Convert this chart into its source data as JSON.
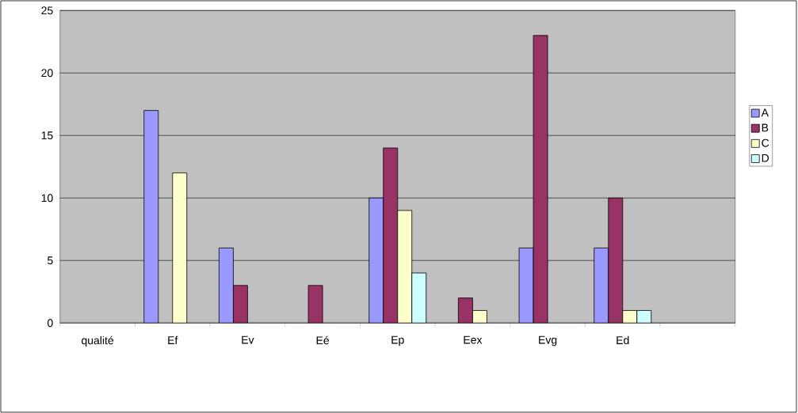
{
  "chart_data": {
    "type": "bar",
    "categories": [
      "qualité",
      "Ef",
      "Ev",
      "Eé",
      "Ep",
      "Eex",
      "Evg",
      "Ed",
      null
    ],
    "series": [
      {
        "name": "A",
        "color": "#9999ff",
        "values": [
          null,
          17,
          6,
          null,
          10,
          null,
          6,
          6,
          null
        ]
      },
      {
        "name": "B",
        "color": "#993366",
        "values": [
          null,
          null,
          3,
          3,
          14,
          2,
          23,
          10,
          null
        ]
      },
      {
        "name": "C",
        "color": "#ffffcc",
        "values": [
          null,
          12,
          null,
          null,
          9,
          1,
          null,
          1,
          null
        ]
      },
      {
        "name": "D",
        "color": "#ccffff",
        "values": [
          null,
          null,
          null,
          null,
          4,
          null,
          null,
          1,
          null
        ]
      }
    ],
    "ylim": [
      0,
      25
    ],
    "yticks": [
      0,
      5,
      10,
      15,
      20,
      25
    ],
    "grid": "y",
    "legend": "right"
  }
}
